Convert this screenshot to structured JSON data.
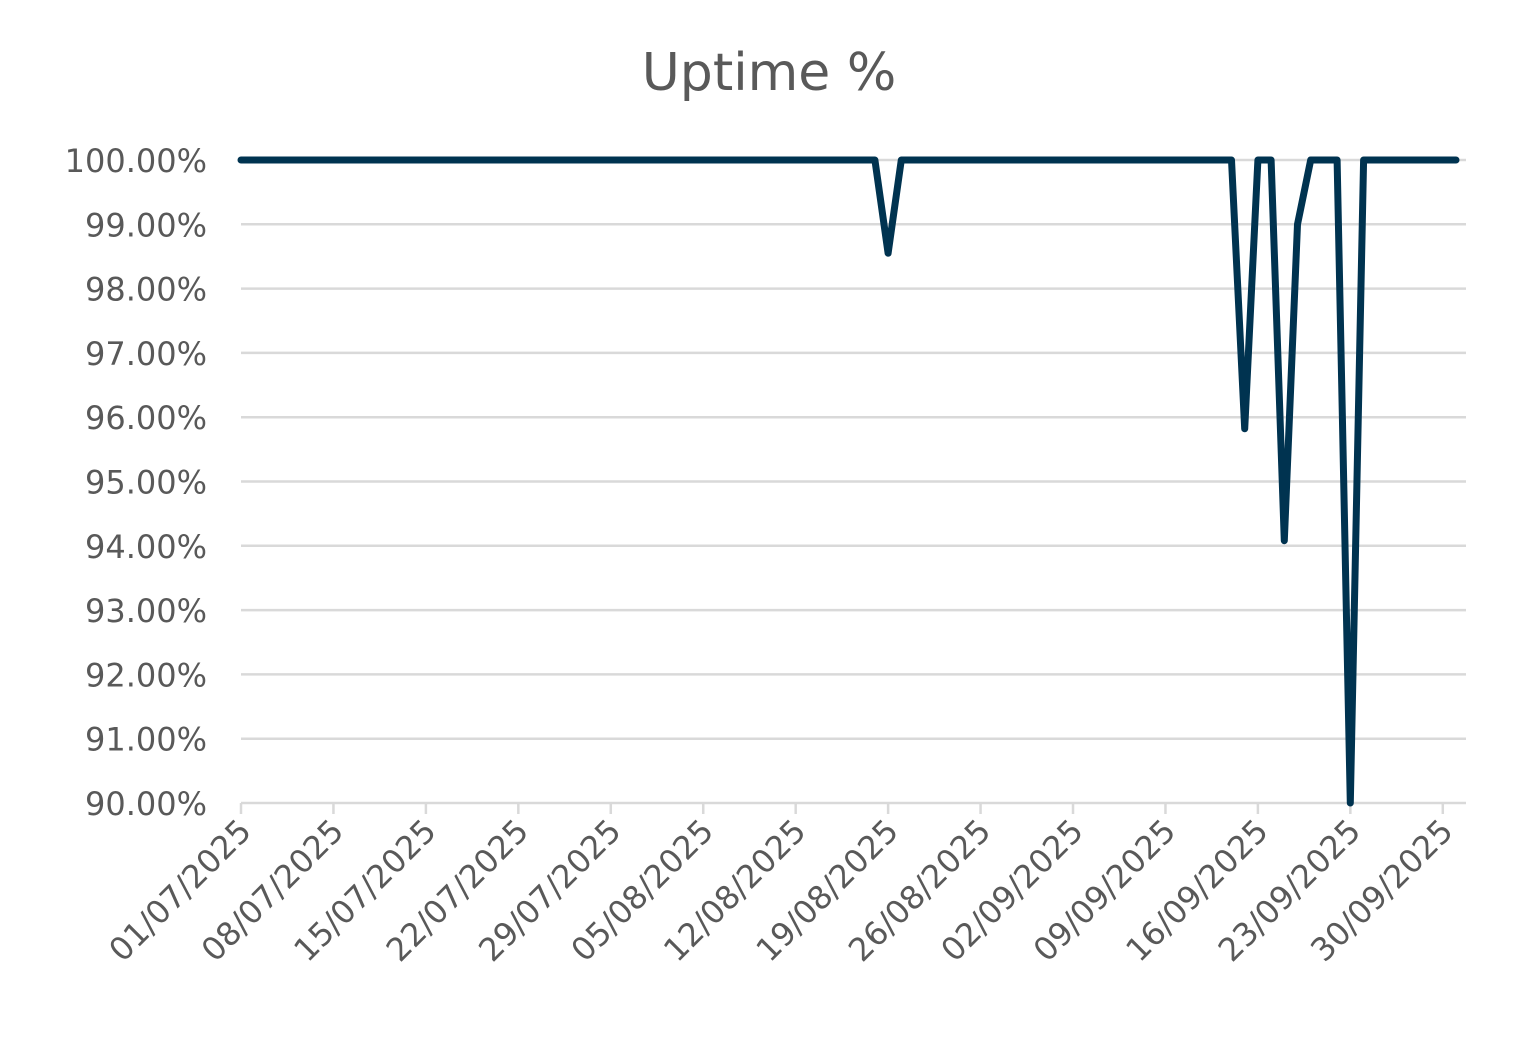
{
  "chart_data": {
    "type": "line",
    "title": "Uptime %",
    "xlabel": "",
    "ylabel": "",
    "ylim": [
      0.9,
      1.0
    ],
    "y_tick_format": "percent-2dp",
    "y_ticks": [
      1.0,
      0.99,
      0.98,
      0.97,
      0.96,
      0.95,
      0.94,
      0.93,
      0.92,
      0.91,
      0.9
    ],
    "y_tick_labels": [
      "100.00%",
      "99.00%",
      "98.00%",
      "97.00%",
      "96.00%",
      "95.00%",
      "94.00%",
      "93.00%",
      "92.00%",
      "91.00%",
      "90.00%"
    ],
    "x_range": [
      "01/07/2025",
      "01/10/2025"
    ],
    "x_tick_labels": [
      "01/07/2025",
      "08/07/2025",
      "15/07/2025",
      "22/07/2025",
      "29/07/2025",
      "05/08/2025",
      "12/08/2025",
      "19/08/2025",
      "26/08/2025",
      "02/09/2025",
      "09/09/2025",
      "16/09/2025",
      "23/09/2025",
      "30/09/2025"
    ],
    "grid": true,
    "legend": "none",
    "series": [
      {
        "color": "#003350",
        "points": [
          {
            "x": "01/07/2025",
            "y": 1.0
          },
          {
            "x": "18/08/2025",
            "y": 1.0
          },
          {
            "x": "19/08/2025",
            "y": 0.9855
          },
          {
            "x": "20/08/2025",
            "y": 1.0
          },
          {
            "x": "14/09/2025",
            "y": 1.0
          },
          {
            "x": "15/09/2025",
            "y": 0.9582
          },
          {
            "x": "16/09/2025",
            "y": 1.0
          },
          {
            "x": "17/09/2025",
            "y": 1.0
          },
          {
            "x": "18/09/2025",
            "y": 0.9408
          },
          {
            "x": "19/09/2025",
            "y": 0.99
          },
          {
            "x": "20/09/2025",
            "y": 1.0
          },
          {
            "x": "22/09/2025",
            "y": 1.0
          },
          {
            "x": "23/09/2025",
            "y": 0.9
          },
          {
            "x": "24/09/2025",
            "y": 1.0
          },
          {
            "x": "01/10/2025",
            "y": 1.0
          }
        ]
      }
    ]
  }
}
